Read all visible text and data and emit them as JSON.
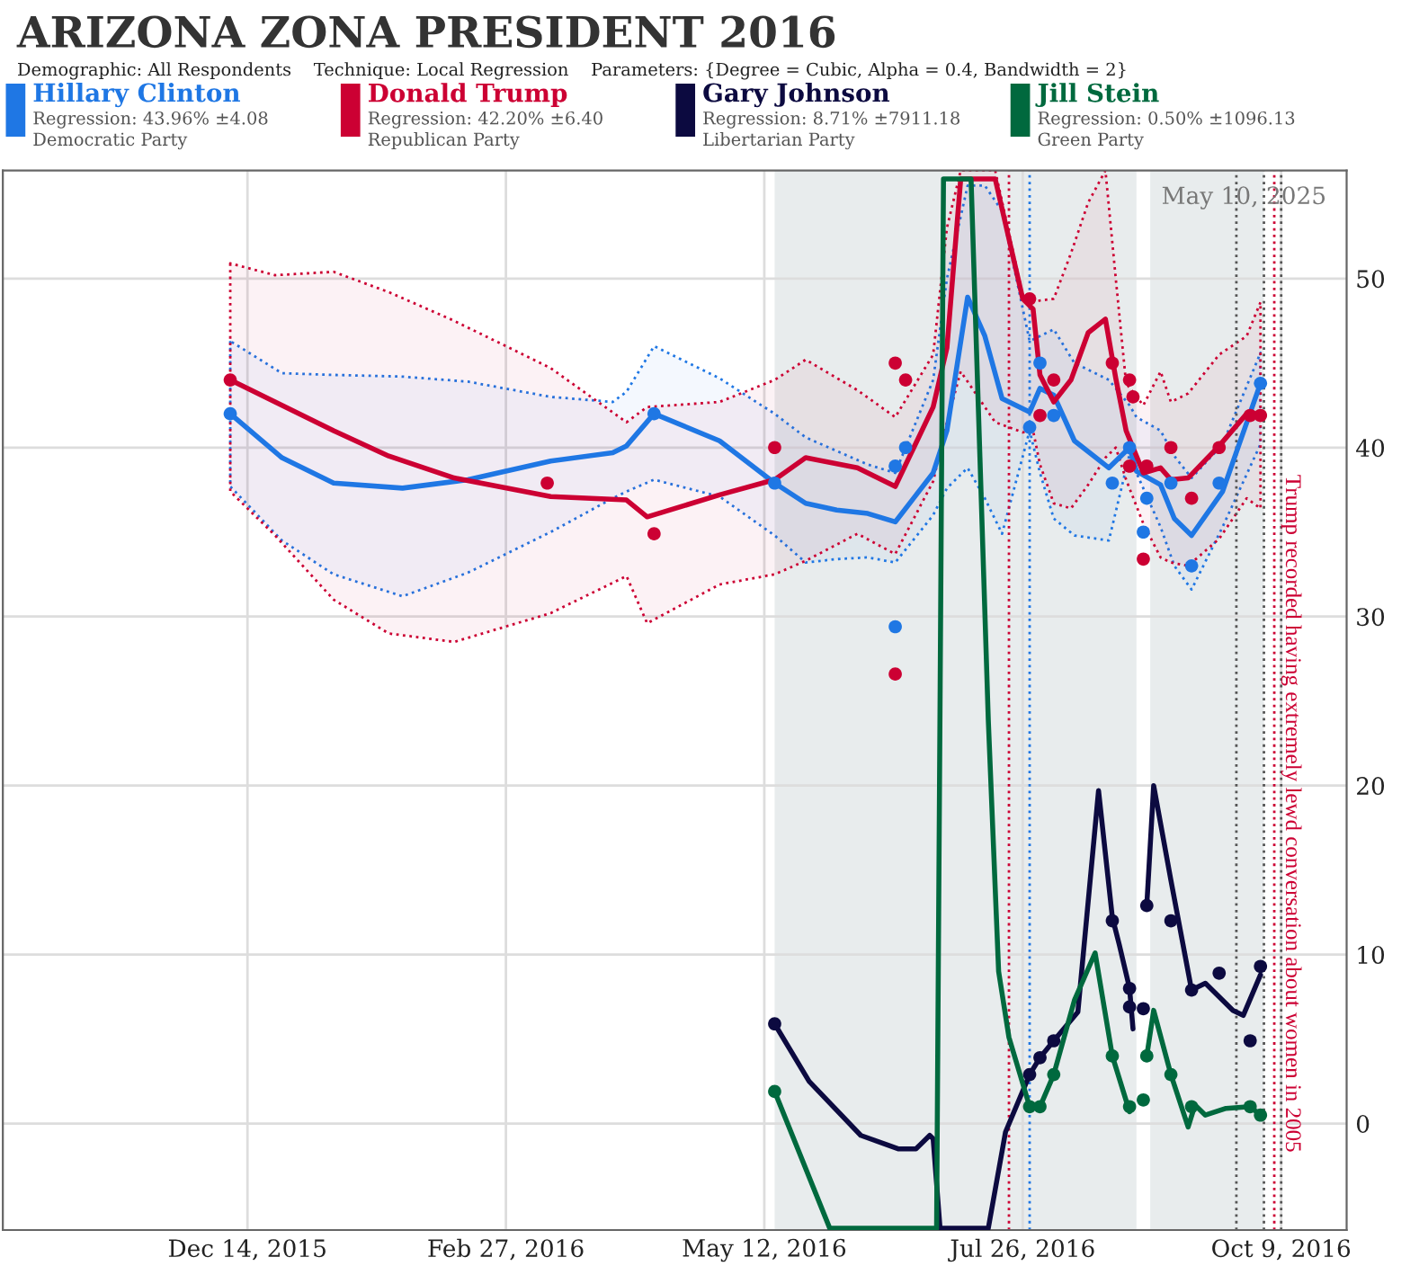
{
  "chart_data": {
    "type": "line",
    "title": "ARIZONA ZONA PRESIDENT 2016",
    "subtitle": "Demographic: All Respondents    Technique: Local Regression    Parameters: {Degree = Cubic, Alpha = 0.4, Bandwidth = 2}",
    "annotations": [
      "May 10, 2025",
      "Regression: 43.96% ±4.08\nDemocratic Party",
      "Regression: 42.20% ±6.40\nRepublican Party",
      "Regression: 8.71% ±7911.18\nLibertarian Party",
      "Regression: 0.50% ±1096.13\nGreen Party"
    ],
    "xlim": [
      "2015-10-04",
      "2016-10-28"
    ],
    "xticks": [
      {
        "value": "2015-12-14",
        "label": "Dec 14, 2015"
      },
      {
        "value": "2016-02-27",
        "label": "Feb 27, 2016"
      },
      {
        "value": "2016-05-12",
        "label": "May 12, 2016"
      },
      {
        "value": "2016-07-26",
        "label": "Jul 26, 2016"
      },
      {
        "value": "2016-10-09",
        "label": "Oct 9, 2016"
      }
    ],
    "ylim": [
      -6.3,
      56.4
    ],
    "yticks": [
      0,
      10,
      20,
      30,
      40,
      50
    ],
    "grid": true,
    "legend": "top",
    "line_style": "solid",
    "bands": [
      {
        "axis": "x",
        "from": "2016-05-15",
        "to": "2016-08-28",
        "color": "#e8eced"
      },
      {
        "axis": "x",
        "from": "2016-09-01",
        "to": "2016-10-04",
        "color": "#e8eced"
      }
    ],
    "ref_lines": [
      {
        "axis": "x",
        "value": "2016-07-22",
        "color": "#cc0033",
        "line_style": "dotted"
      },
      {
        "axis": "x",
        "value": "2016-07-28",
        "color": "#1f77e4",
        "line_style": "dotted"
      },
      {
        "axis": "x",
        "value": "2016-09-26",
        "color": "#555555",
        "line_style": "dotted"
      },
      {
        "axis": "x",
        "value": "2016-10-04",
        "color": "#555555",
        "line_style": "dotted"
      },
      {
        "axis": "x",
        "value": "2016-10-07",
        "color": "#cc0033",
        "line_style": "dotted",
        "label": "Trump recorded having extremely lewd conversation about women in 2005"
      },
      {
        "axis": "x",
        "value": "2016-10-09",
        "color": "#555555",
        "line_style": "dotted"
      }
    ],
    "series": [
      {
        "name": "Hillary Clinton",
        "color": "#1f77e4",
        "x": [
          "2015-12-09",
          "2015-12-24",
          "2016-01-08",
          "2016-01-28",
          "2016-02-16",
          "2016-03-11",
          "2016-03-29",
          "2016-04-02",
          "2016-04-10",
          "2016-04-29",
          "2016-05-15",
          "2016-05-24",
          "2016-06-02",
          "2016-06-11",
          "2016-06-19",
          "2016-06-30",
          "2016-07-04",
          "2016-07-10",
          "2016-07-15",
          "2016-07-20",
          "2016-07-28",
          "2016-07-31",
          "2016-08-04",
          "2016-08-10",
          "2016-08-20",
          "2016-08-26",
          "2016-08-28",
          "2016-09-04",
          "2016-09-08",
          "2016-09-13",
          "2016-09-22",
          "2016-10-03"
        ],
        "values": [
          42.0,
          39.4,
          37.9,
          37.6,
          38.1,
          39.2,
          39.7,
          40.1,
          42.0,
          40.4,
          37.9,
          36.7,
          36.3,
          36.1,
          35.6,
          38.5,
          41.0,
          48.9,
          46.6,
          42.9,
          42.1,
          43.5,
          43.1,
          40.4,
          38.8,
          40.0,
          38.6,
          37.8,
          35.8,
          34.8,
          37.4,
          43.8
        ],
        "lower": [
          37.7,
          34.5,
          32.5,
          31.2,
          32.6,
          35.0,
          37.0,
          37.4,
          38.1,
          37.1,
          34.8,
          33.2,
          33.4,
          33.5,
          33.2,
          36.0,
          37.6,
          38.8,
          37.0,
          34.9,
          41.0,
          38.5,
          35.8,
          34.8,
          34.5,
          39.6,
          38.5,
          35.3,
          33.0,
          31.6,
          35.3,
          40.2
        ],
        "upper": [
          46.3,
          44.4,
          44.3,
          44.2,
          43.9,
          43.0,
          42.7,
          43.3,
          46.0,
          44.1,
          42.0,
          40.6,
          39.8,
          39.0,
          38.5,
          44.0,
          50.0,
          55.5,
          55.5,
          54.0,
          46.3,
          46.6,
          47.0,
          45.0,
          44.0,
          42.5,
          41.8,
          41.0,
          39.5,
          38.2,
          40.2,
          45.6
        ]
      },
      {
        "name": "Donald Trump",
        "color": "#cc0033",
        "x": [
          "2015-12-09",
          "2015-12-22",
          "2016-01-08",
          "2016-01-24",
          "2016-02-12",
          "2016-03-11",
          "2016-04-02",
          "2016-04-08",
          "2016-04-29",
          "2016-05-15",
          "2016-05-24",
          "2016-06-08",
          "2016-06-19",
          "2016-06-30",
          "2016-07-04",
          "2016-07-08",
          "2016-07-18",
          "2016-07-26",
          "2016-07-29",
          "2016-07-31",
          "2016-08-04",
          "2016-08-09",
          "2016-08-14",
          "2016-08-19",
          "2016-08-22",
          "2016-08-25",
          "2016-08-30",
          "2016-09-04",
          "2016-09-07",
          "2016-09-12",
          "2016-09-21",
          "2016-09-29",
          "2016-10-03"
        ],
        "values": [
          44.0,
          42.7,
          41.0,
          39.5,
          38.2,
          37.1,
          36.9,
          35.9,
          37.2,
          38.1,
          39.4,
          38.8,
          37.7,
          42.4,
          45.9,
          55.9,
          55.9,
          48.8,
          48.2,
          44.3,
          42.7,
          44.0,
          46.8,
          47.6,
          44.1,
          41.0,
          38.5,
          38.8,
          38.1,
          38.2,
          40.1,
          42.0,
          41.8
        ],
        "lower": [
          37.4,
          34.8,
          31.0,
          29.0,
          28.5,
          30.2,
          32.4,
          29.6,
          31.9,
          32.5,
          33.3,
          34.9,
          33.7,
          38.0,
          41.5,
          44.5,
          41.5,
          40.9,
          41.0,
          39.0,
          36.7,
          36.4,
          37.8,
          39.4,
          40.0,
          38.1,
          35.5,
          33.5,
          33.2,
          33.0,
          34.6,
          37.0,
          36.4
        ],
        "upper": [
          50.9,
          50.2,
          50.4,
          49.2,
          47.5,
          44.7,
          41.5,
          42.4,
          42.7,
          44.0,
          45.2,
          43.4,
          41.8,
          45.5,
          53.0,
          56.4,
          56.4,
          49.0,
          48.6,
          48.7,
          48.8,
          51.5,
          54.5,
          56.4,
          50.0,
          43.8,
          42.5,
          44.5,
          42.7,
          43.2,
          45.5,
          46.6,
          48.6
        ]
      },
      {
        "name": "Gary Johnson",
        "color": "#0c0a40",
        "x": [
          "2016-05-15",
          "2016-05-25",
          "2016-06-09",
          "2016-06-20",
          "2016-06-25",
          "2016-06-29",
          "2016-06-30",
          "2016-07-02",
          "2016-07-16",
          "2016-07-21",
          "2016-07-28",
          "2016-07-31",
          "2016-08-04",
          "2016-08-11",
          "2016-08-17",
          "2016-08-21",
          "2016-08-23",
          "2016-08-26",
          "2016-08-27",
          "2016-08-29",
          "2016-08-31",
          "2016-09-02",
          "2016-09-07",
          "2016-09-13",
          "2016-09-17",
          "2016-09-25",
          "2016-09-28",
          "2016-10-03"
        ],
        "values": [
          5.9,
          2.5,
          -0.7,
          -1.5,
          -1.5,
          -0.7,
          -0.9,
          -6.2,
          -6.2,
          -0.5,
          2.9,
          3.9,
          4.9,
          6.6,
          19.7,
          12.2,
          10.6,
          8.0,
          5.6,
          null,
          12.9,
          20.0,
          14.4,
          7.9,
          8.3,
          6.7,
          6.4,
          8.8
        ]
      },
      {
        "name": "Jill Stein",
        "color": "#00693e",
        "x": [
          "2016-05-15",
          "2016-05-31",
          "2016-07-01",
          "2016-07-03",
          "2016-07-11",
          "2016-07-16",
          "2016-07-19",
          "2016-07-22",
          "2016-07-28",
          "2016-07-31",
          "2016-08-04",
          "2016-08-10",
          "2016-08-16",
          "2016-08-21",
          "2016-08-26",
          "2016-08-29",
          "2016-08-31",
          "2016-09-02",
          "2016-09-07",
          "2016-09-12",
          "2016-09-14",
          "2016-09-17",
          "2016-09-23",
          "2016-09-30",
          "2016-10-03"
        ],
        "values": [
          1.9,
          -6.2,
          -6.2,
          55.9,
          55.9,
          23.9,
          9.0,
          5.1,
          1.0,
          1.0,
          2.9,
          7.3,
          10.1,
          4.0,
          0.7,
          null,
          4.0,
          6.7,
          2.9,
          -0.2,
          1.1,
          0.5,
          0.9,
          1.0,
          0.5
        ]
      },
      {
        "type": "scatter",
        "color": "#1f77e4",
        "marker": "circle",
        "x": [
          "2015-12-09",
          "2016-04-10",
          "2016-05-15",
          "2016-06-19",
          "2016-06-19",
          "2016-06-22",
          "2016-07-28",
          "2016-07-31",
          "2016-08-04",
          "2016-08-21",
          "2016-08-26",
          "2016-08-30",
          "2016-08-31",
          "2016-09-07",
          "2016-09-13",
          "2016-09-21",
          "2016-10-03"
        ],
        "values": [
          42.0,
          42.0,
          37.9,
          38.9,
          29.4,
          40.0,
          41.2,
          45.0,
          41.9,
          37.9,
          40.0,
          35.0,
          37.0,
          37.9,
          33.0,
          37.9,
          43.8
        ]
      },
      {
        "type": "scatter",
        "color": "#cc0033",
        "marker": "circle",
        "x": [
          "2015-12-09",
          "2016-03-10",
          "2016-04-10",
          "2016-05-15",
          "2016-06-19",
          "2016-06-22",
          "2016-06-19",
          "2016-07-28",
          "2016-07-31",
          "2016-08-04",
          "2016-08-21",
          "2016-08-26",
          "2016-08-27",
          "2016-08-26",
          "2016-08-30",
          "2016-08-31",
          "2016-09-07",
          "2016-09-13",
          "2016-09-21",
          "2016-09-30",
          "2016-10-03"
        ],
        "values": [
          44.0,
          37.9,
          34.9,
          40.0,
          45.0,
          44.0,
          26.6,
          48.8,
          41.9,
          44.0,
          45.0,
          44.0,
          43.0,
          38.9,
          33.4,
          38.9,
          40.0,
          37.0,
          40.0,
          41.9,
          41.9
        ]
      },
      {
        "type": "scatter",
        "color": "#0c0a40",
        "marker": "circle",
        "x": [
          "2016-05-15",
          "2016-07-28",
          "2016-07-31",
          "2016-08-04",
          "2016-08-21",
          "2016-08-26",
          "2016-08-26",
          "2016-08-30",
          "2016-08-31",
          "2016-09-07",
          "2016-09-13",
          "2016-09-21",
          "2016-09-30",
          "2016-10-03"
        ],
        "values": [
          5.9,
          2.9,
          3.9,
          4.9,
          12.0,
          8.0,
          6.9,
          6.8,
          12.9,
          12.0,
          7.9,
          8.9,
          4.9,
          9.3
        ]
      },
      {
        "type": "scatter",
        "color": "#00693e",
        "marker": "circle",
        "x": [
          "2016-05-15",
          "2016-07-28",
          "2016-07-31",
          "2016-08-04",
          "2016-08-21",
          "2016-08-26",
          "2016-08-30",
          "2016-08-31",
          "2016-09-07",
          "2016-09-13",
          "2016-09-30",
          "2016-10-03"
        ],
        "values": [
          1.9,
          1.0,
          1.0,
          2.9,
          4.0,
          1.0,
          1.4,
          4.0,
          2.9,
          1.0,
          1.0,
          0.5
        ]
      }
    ]
  }
}
